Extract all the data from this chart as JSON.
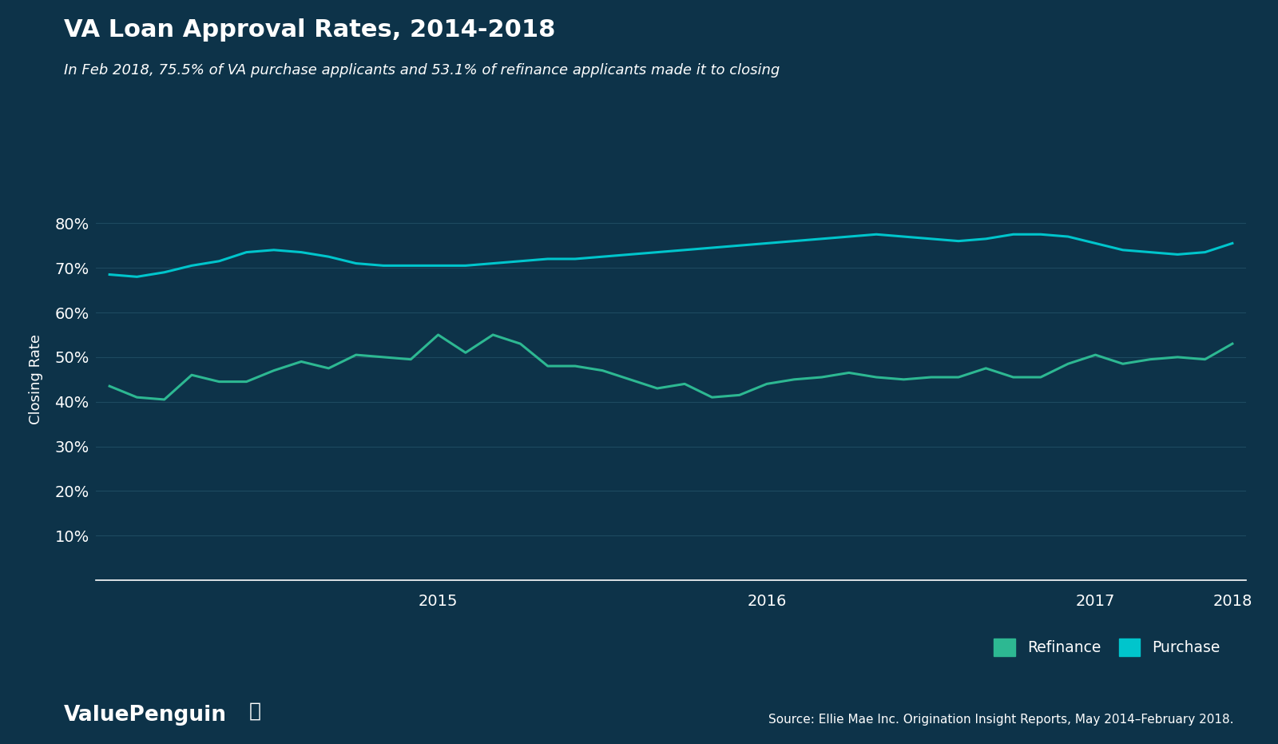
{
  "title": "VA Loan Approval Rates, 2014-2018",
  "subtitle": "In Feb 2018, 75.5% of VA purchase applicants and 53.1% of refinance applicants made it to closing",
  "ylabel": "Closing Rate",
  "source_text": "Source: Ellie Mae Inc. Origination Insight Reports, May 2014–February 2018.",
  "background_color": "#0d3349",
  "text_color": "#ffffff",
  "grid_color": "#1e4a60",
  "purchase_color": "#00c5cc",
  "refinance_color": "#2db892",
  "ylim": [
    0,
    90
  ],
  "yticks": [
    10,
    20,
    30,
    40,
    50,
    60,
    70,
    80
  ],
  "purchase_data": [
    68.5,
    68.0,
    69.0,
    70.5,
    71.5,
    73.5,
    74.0,
    73.5,
    72.5,
    71.0,
    70.5,
    70.5,
    70.5,
    70.5,
    71.0,
    71.5,
    72.0,
    72.0,
    72.5,
    73.0,
    73.5,
    74.0,
    74.5,
    75.0,
    75.5,
    76.0,
    76.5,
    77.0,
    77.5,
    77.0,
    76.5,
    76.0,
    76.5,
    77.5,
    77.5,
    77.0,
    75.5,
    74.0,
    73.5,
    73.0,
    73.5,
    75.5
  ],
  "refinance_data": [
    43.5,
    41.0,
    40.5,
    46.0,
    44.5,
    44.5,
    47.0,
    49.0,
    47.5,
    50.5,
    50.0,
    49.5,
    55.0,
    51.0,
    55.0,
    53.0,
    48.0,
    48.0,
    47.0,
    45.0,
    43.0,
    44.0,
    41.0,
    41.5,
    44.0,
    45.0,
    45.5,
    46.5,
    45.5,
    45.0,
    45.5,
    45.5,
    47.5,
    45.5,
    45.5,
    48.5,
    50.5,
    48.5,
    49.5,
    50.0,
    49.5,
    53.0
  ],
  "n_points": 42,
  "x_tick_positions": [
    0,
    12,
    24,
    36,
    41
  ],
  "x_tick_labels": [
    "",
    "2015",
    "2016",
    "2017",
    "2018"
  ]
}
